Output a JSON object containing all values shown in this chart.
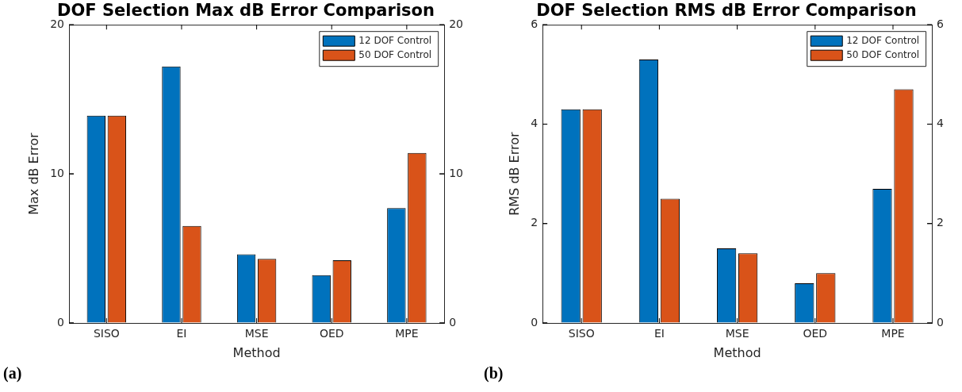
{
  "chart_data": [
    {
      "type": "bar",
      "title": "DOF Selection Max dB Error Comparison",
      "xlabel": "Method",
      "ylabel": "Max dB Error",
      "categories": [
        "SISO",
        "EI",
        "MSE",
        "OED",
        "MPE"
      ],
      "series": [
        {
          "name": "12 DOF Control",
          "color": "#0072bd",
          "values": [
            13.9,
            17.2,
            4.6,
            3.2,
            7.7
          ]
        },
        {
          "name": "50 DOF Control",
          "color": "#d95319",
          "values": [
            13.9,
            6.5,
            4.3,
            4.2,
            11.4
          ]
        }
      ],
      "ylim": [
        0,
        20
      ],
      "yticks": [
        0,
        10,
        20
      ],
      "y2lim": [
        0,
        20
      ],
      "y2ticks": [
        0,
        10,
        20
      ],
      "legend": "top right",
      "grid": false,
      "annotations": [
        "(a)"
      ]
    },
    {
      "type": "bar",
      "title": "DOF Selection RMS dB Error Comparison",
      "xlabel": "Method",
      "ylabel": "RMS dB Error",
      "categories": [
        "SISO",
        "EI",
        "MSE",
        "OED",
        "MPE"
      ],
      "series": [
        {
          "name": "12 DOF Control",
          "color": "#0072bd",
          "values": [
            4.3,
            5.3,
            1.5,
            0.8,
            2.7
          ]
        },
        {
          "name": "50 DOF Control",
          "color": "#d95319",
          "values": [
            4.3,
            2.5,
            1.4,
            1.0,
            4.7
          ]
        }
      ],
      "ylim": [
        0,
        6
      ],
      "yticks": [
        0,
        2,
        4,
        6
      ],
      "y2lim": [
        0,
        6
      ],
      "y2ticks": [
        0,
        2,
        4,
        6
      ],
      "legend": "top right",
      "grid": false,
      "annotations": [
        "(b)"
      ]
    }
  ]
}
